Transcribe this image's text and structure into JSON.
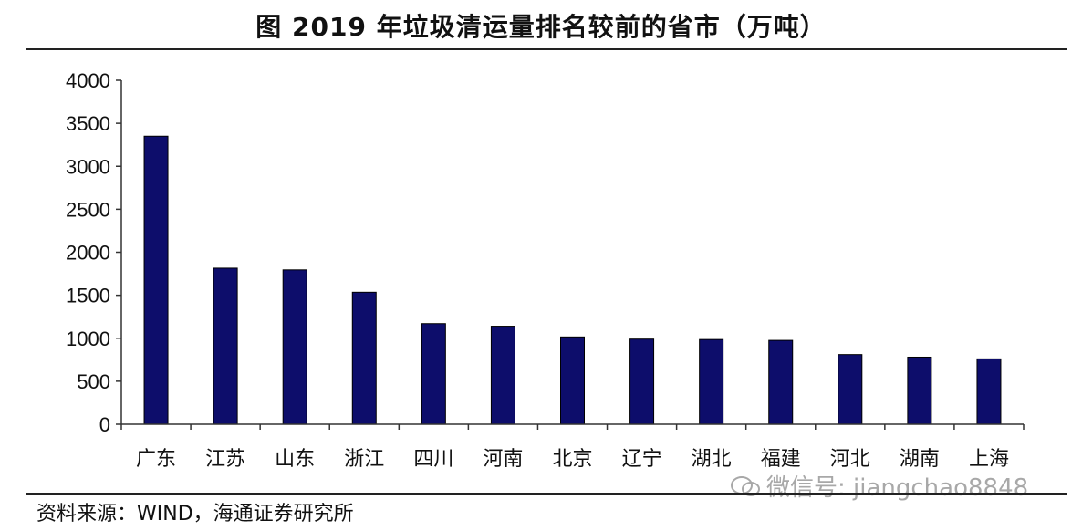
{
  "title": "图  2019 年垃圾清运量排名较前的省市（万吨）",
  "source": "资料来源：WIND，海通证券研究所",
  "watermark": "微信号: jiangchao8848",
  "colors": {
    "bar": "#0d0d6b",
    "axis": "#333333"
  },
  "chart_data": {
    "type": "bar",
    "categories": [
      "广东",
      "江苏",
      "山东",
      "浙江",
      "四川",
      "河南",
      "北京",
      "辽宁",
      "湖北",
      "福建",
      "河北",
      "湖南",
      "上海"
    ],
    "values": [
      3350,
      1815,
      1795,
      1535,
      1170,
      1140,
      1015,
      990,
      985,
      975,
      810,
      780,
      760
    ],
    "ylim": [
      0,
      4000
    ],
    "yticks": [
      0,
      500,
      1000,
      1500,
      2000,
      2500,
      3000,
      3500,
      4000
    ],
    "grid": false,
    "legend": "none"
  }
}
